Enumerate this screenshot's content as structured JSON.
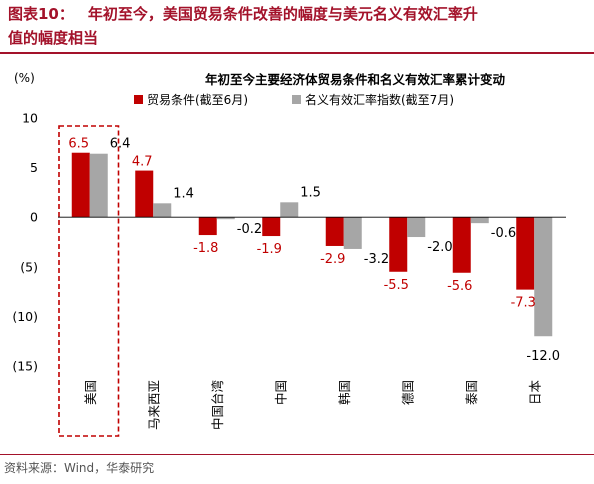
{
  "header": {
    "figure_label": "图表10：",
    "title_line1": "年初至今，美国贸易条件改善的幅度与美元名义有效汇率升",
    "title_line2": "值的幅度相当"
  },
  "source": "资料来源：Wind，华泰研究",
  "chart_data": {
    "type": "bar",
    "title": "年初至今主要经济体贸易条件和名义有效汇率累计变动",
    "ylabel": "(%)",
    "ylim": [
      -15,
      10
    ],
    "yticks": [
      10,
      5,
      0,
      -5,
      -10,
      -15
    ],
    "ytick_labels": [
      "10",
      "5",
      "0",
      "(5)",
      "(10)",
      "(15)"
    ],
    "categories": [
      "美国",
      "马来西亚",
      "中国台湾",
      "中国",
      "韩国",
      "德国",
      "泰国",
      "日本"
    ],
    "series": [
      {
        "name": "贸易条件(截至6月)",
        "color": "#c00000",
        "label_color": "#c00000",
        "values": [
          6.5,
          4.7,
          -1.8,
          -1.9,
          -2.9,
          -5.5,
          -5.6,
          -7.3
        ]
      },
      {
        "name": "名义有效汇率指数(截至7月)",
        "color": "#a6a6a6",
        "label_color": "#000000",
        "values": [
          6.4,
          1.4,
          -0.2,
          1.5,
          -3.2,
          -2.0,
          -0.6,
          -12.0
        ]
      }
    ],
    "legend_position": "top-right",
    "grid": false,
    "highlight_category": "美国",
    "highlight_color": "#c00000"
  }
}
